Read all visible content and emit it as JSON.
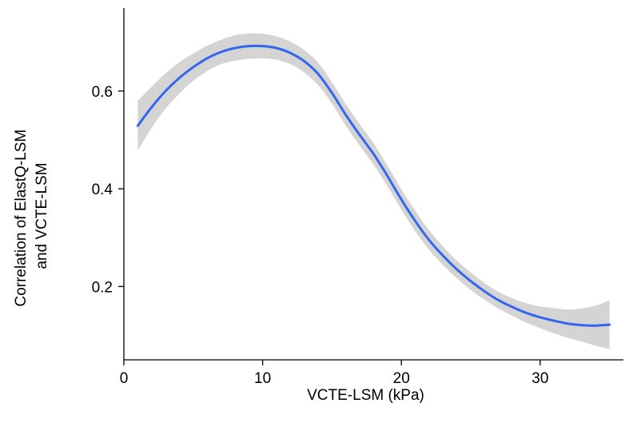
{
  "chart_data": {
    "type": "line",
    "title": "",
    "xlabel": "VCTE-LSM (kPa)",
    "ylabel_lines": [
      "Correlation of ElastQ-LSM",
      "and VCTE-LSM"
    ],
    "xlim": [
      0,
      36
    ],
    "ylim": [
      0.05,
      0.77
    ],
    "xticks": [
      0,
      10,
      20,
      30
    ],
    "xtick_labels": [
      "0",
      "10",
      "20",
      "30"
    ],
    "yticks": [
      0.2,
      0.4,
      0.6
    ],
    "ytick_labels": [
      "0.2",
      "0.4",
      "0.6"
    ],
    "grid": false,
    "legend": "none",
    "colors": {
      "line": "#3366ee",
      "band": "#d4d4d4",
      "axis": "#000000"
    },
    "series": [
      {
        "x": [
          1,
          2,
          3,
          4,
          5,
          6,
          7,
          8,
          9,
          10,
          11,
          12,
          13,
          14,
          15,
          16,
          17,
          18,
          19,
          20,
          21,
          22,
          23,
          24,
          25,
          26,
          27,
          28,
          29,
          30,
          31,
          32,
          33,
          34,
          35
        ],
        "y": [
          0.529,
          0.567,
          0.6,
          0.627,
          0.649,
          0.667,
          0.68,
          0.688,
          0.692,
          0.692,
          0.688,
          0.678,
          0.661,
          0.635,
          0.596,
          0.551,
          0.51,
          0.471,
          0.426,
          0.378,
          0.334,
          0.295,
          0.263,
          0.235,
          0.211,
          0.19,
          0.172,
          0.158,
          0.146,
          0.137,
          0.13,
          0.124,
          0.121,
          0.12,
          0.122
        ],
        "lower": [
          0.478,
          0.525,
          0.564,
          0.595,
          0.621,
          0.641,
          0.655,
          0.662,
          0.666,
          0.667,
          0.664,
          0.655,
          0.638,
          0.612,
          0.574,
          0.529,
          0.488,
          0.449,
          0.405,
          0.357,
          0.313,
          0.275,
          0.244,
          0.217,
          0.193,
          0.173,
          0.155,
          0.14,
          0.126,
          0.115,
          0.104,
          0.095,
          0.087,
          0.079,
          0.072
        ],
        "upper": [
          0.58,
          0.609,
          0.636,
          0.659,
          0.677,
          0.693,
          0.705,
          0.714,
          0.718,
          0.717,
          0.712,
          0.701,
          0.684,
          0.658,
          0.618,
          0.573,
          0.532,
          0.493,
          0.447,
          0.399,
          0.355,
          0.315,
          0.282,
          0.253,
          0.229,
          0.207,
          0.189,
          0.176,
          0.166,
          0.159,
          0.156,
          0.153,
          0.155,
          0.161,
          0.172
        ]
      }
    ]
  }
}
